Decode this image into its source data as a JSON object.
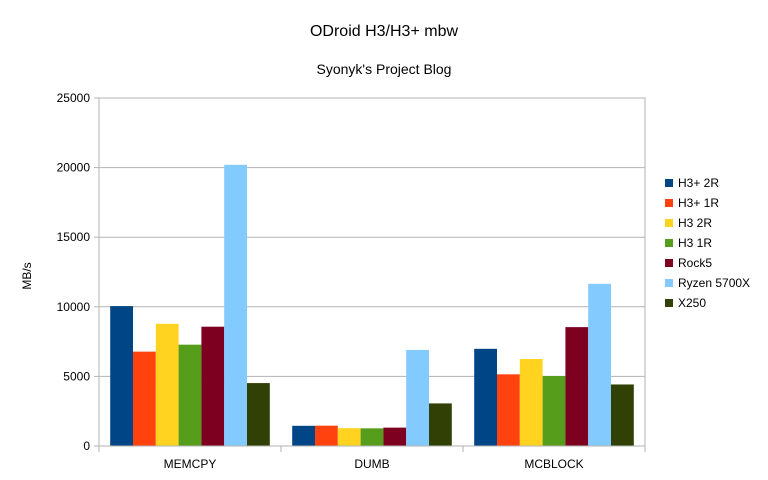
{
  "chart_data": {
    "type": "bar",
    "title": "ODroid H3/H3+ mbw",
    "subtitle": "Syonyk's Project Blog",
    "xlabel": "",
    "ylabel": "MB/s",
    "ylim": [
      0,
      25000
    ],
    "yticks": [
      "0",
      "5000",
      "10000",
      "15000",
      "20000",
      "25000"
    ],
    "categories": [
      "MEMCPY",
      "DUMB",
      "MCBLOCK"
    ],
    "grid": "horizontal",
    "legend_position": "right",
    "series": [
      {
        "name": "H3+ 2R",
        "color": "#004586",
        "values": [
          10050,
          1450,
          6980
        ]
      },
      {
        "name": "H3+ 1R",
        "color": "#ff420e",
        "values": [
          6780,
          1460,
          5150
        ]
      },
      {
        "name": "H3 2R",
        "color": "#ffd320",
        "values": [
          8780,
          1280,
          6250
        ]
      },
      {
        "name": "H3 1R",
        "color": "#579d1c",
        "values": [
          7280,
          1270,
          5030
        ]
      },
      {
        "name": "Rock5",
        "color": "#7e0021",
        "values": [
          8570,
          1320,
          8540
        ]
      },
      {
        "name": "Ryzen 5700X",
        "color": "#83caff",
        "values": [
          20200,
          6900,
          11650
        ]
      },
      {
        "name": "X250",
        "color": "#314004",
        "values": [
          4520,
          3060,
          4420
        ]
      }
    ]
  }
}
